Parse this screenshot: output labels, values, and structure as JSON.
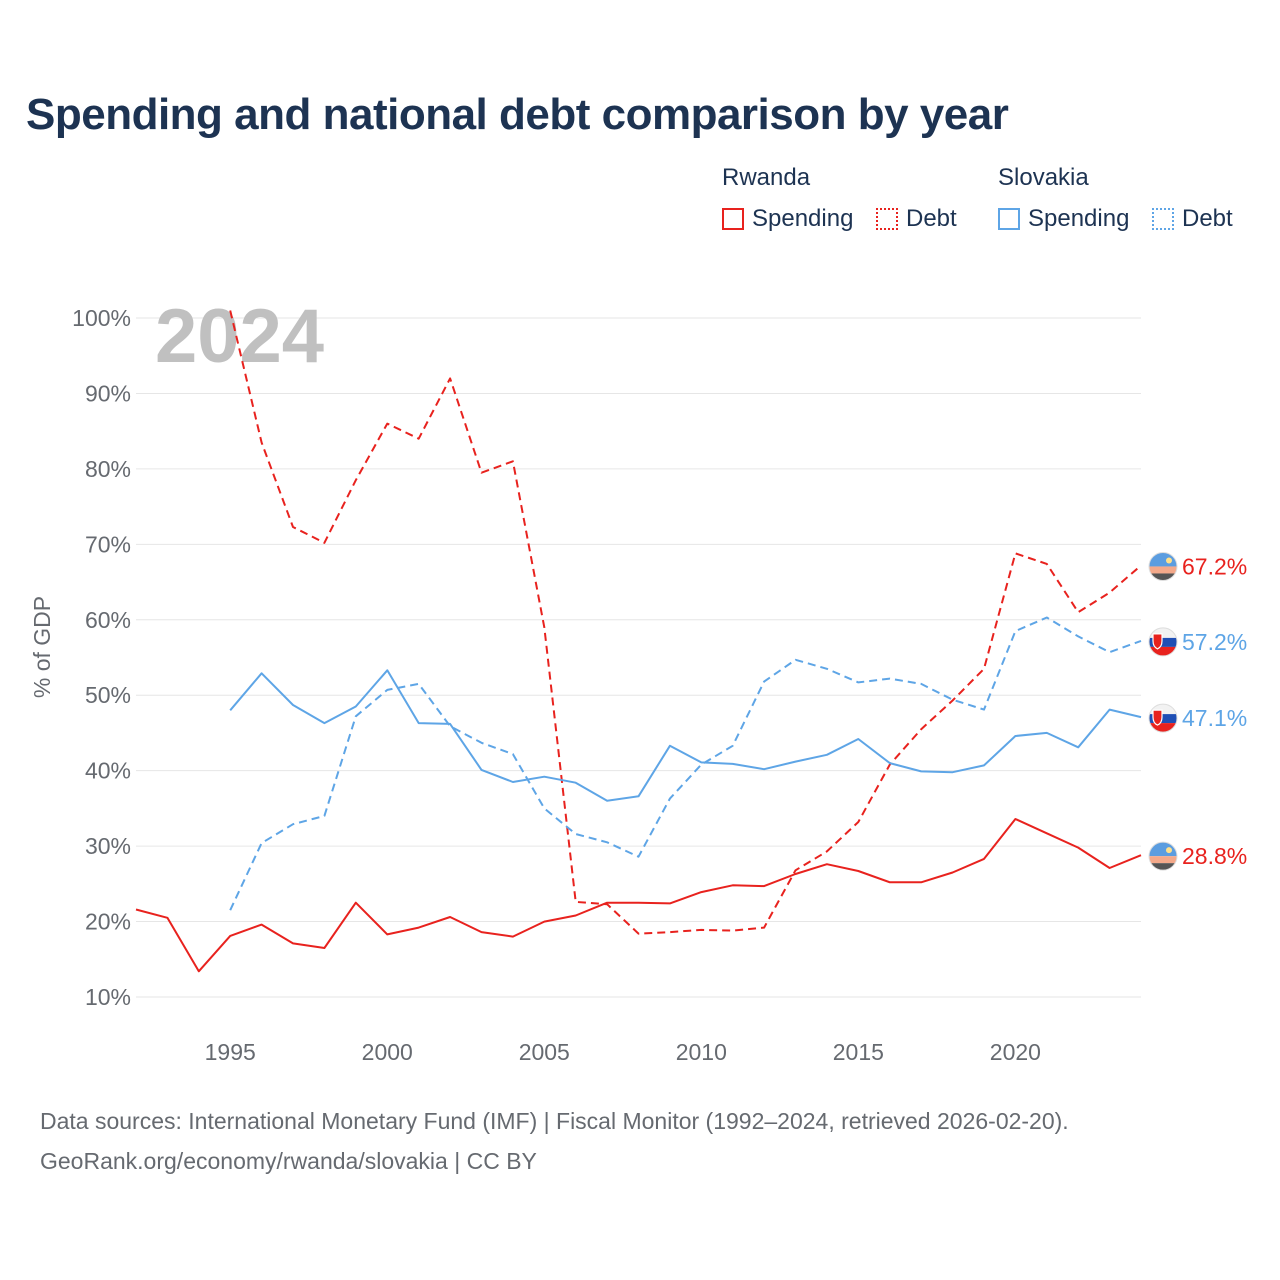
{
  "title": "Spending and national debt comparison by year",
  "legend": {
    "groups": [
      {
        "country": "Rwanda",
        "items": [
          {
            "label": "Spending",
            "style": "solid"
          },
          {
            "label": "Debt",
            "style": "dotted"
          }
        ],
        "color": "#e8221e"
      },
      {
        "country": "Slovakia",
        "items": [
          {
            "label": "Spending",
            "style": "solid"
          },
          {
            "label": "Debt",
            "style": "dotted"
          }
        ],
        "color": "#5ea5e6"
      }
    ]
  },
  "year_watermark": "2024",
  "footer": {
    "line1": "Data sources: International Monetary Fund (IMF) | Fiscal Monitor (1992–2024, retrieved 2026-02-20).",
    "line2": "GeoRank.org/economy/rwanda/slovakia | CC BY"
  },
  "colors": {
    "rwanda": "#e8221e",
    "slovakia": "#5ea5e6",
    "title": "#1d3352",
    "axis_text": "#666a70",
    "grid": "#e6e6e6",
    "watermark": "#c0c0c0"
  },
  "chart_data": {
    "type": "line",
    "title": "Spending and national debt comparison by year",
    "xlabel": "",
    "ylabel": "% of GDP",
    "xlim": [
      1992,
      2024
    ],
    "ylim": [
      10,
      100
    ],
    "xticks": [
      1995,
      2000,
      2005,
      2010,
      2015,
      2020
    ],
    "yticks": [
      10,
      20,
      30,
      40,
      50,
      60,
      70,
      80,
      90,
      100
    ],
    "ytick_labels": [
      "10%",
      "20%",
      "30%",
      "40%",
      "50%",
      "60%",
      "70%",
      "80%",
      "90%",
      "100%"
    ],
    "series": [
      {
        "name": "Rwanda Debt",
        "country": "Rwanda",
        "metric": "Debt",
        "dashed": true,
        "color": "#e8221e",
        "end_label": "67.2%",
        "flag": "rwanda",
        "points": [
          [
            1995,
            101
          ],
          [
            1996,
            83.5
          ],
          [
            1997,
            72.3
          ],
          [
            1998,
            70.2
          ],
          [
            1999,
            78.5
          ],
          [
            2000,
            86
          ],
          [
            2001,
            84
          ],
          [
            2002,
            92
          ],
          [
            2003,
            79.5
          ],
          [
            2004,
            81
          ],
          [
            2005,
            59
          ],
          [
            2006,
            22.6
          ],
          [
            2007,
            22.3
          ],
          [
            2008,
            18.4
          ],
          [
            2009,
            18.6
          ],
          [
            2010,
            18.9
          ],
          [
            2011,
            18.8
          ],
          [
            2012,
            19.2
          ],
          [
            2013,
            26.8
          ],
          [
            2014,
            29.3
          ],
          [
            2015,
            33.2
          ],
          [
            2016,
            40.8
          ],
          [
            2017,
            45.5
          ],
          [
            2018,
            49.3
          ],
          [
            2019,
            53.5
          ],
          [
            2020,
            68.8
          ],
          [
            2021,
            67.4
          ],
          [
            2022,
            61
          ],
          [
            2023,
            63.6
          ],
          [
            2024,
            67.2
          ]
        ]
      },
      {
        "name": "Rwanda Spending",
        "country": "Rwanda",
        "metric": "Spending",
        "dashed": false,
        "color": "#e8221e",
        "end_label": "28.8%",
        "flag": "rwanda",
        "points": [
          [
            1992,
            21.6
          ],
          [
            1993,
            20.5
          ],
          [
            1994,
            13.4
          ],
          [
            1995,
            18.1
          ],
          [
            1996,
            19.6
          ],
          [
            1997,
            17.1
          ],
          [
            1998,
            16.5
          ],
          [
            1999,
            22.5
          ],
          [
            2000,
            18.3
          ],
          [
            2001,
            19.2
          ],
          [
            2002,
            20.6
          ],
          [
            2003,
            18.6
          ],
          [
            2004,
            18
          ],
          [
            2005,
            20
          ],
          [
            2006,
            20.8
          ],
          [
            2007,
            22.5
          ],
          [
            2008,
            22.5
          ],
          [
            2009,
            22.4
          ],
          [
            2010,
            23.9
          ],
          [
            2011,
            24.8
          ],
          [
            2012,
            24.7
          ],
          [
            2013,
            26.3
          ],
          [
            2014,
            27.6
          ],
          [
            2015,
            26.7
          ],
          [
            2016,
            25.2
          ],
          [
            2017,
            25.2
          ],
          [
            2018,
            26.5
          ],
          [
            2019,
            28.3
          ],
          [
            2020,
            33.6
          ],
          [
            2021,
            31.7
          ],
          [
            2022,
            29.8
          ],
          [
            2023,
            27.1
          ],
          [
            2024,
            28.8
          ]
        ]
      },
      {
        "name": "Slovakia Debt",
        "country": "Slovakia",
        "metric": "Debt",
        "dashed": true,
        "color": "#5ea5e6",
        "end_label": "57.2%",
        "flag": "slovakia",
        "points": [
          [
            1995,
            21.5
          ],
          [
            1996,
            30.4
          ],
          [
            1997,
            32.9
          ],
          [
            1998,
            34
          ],
          [
            1999,
            47.2
          ],
          [
            2000,
            50.7
          ],
          [
            2001,
            51.5
          ],
          [
            2002,
            45.9
          ],
          [
            2003,
            43.7
          ],
          [
            2004,
            42.2
          ],
          [
            2005,
            35
          ],
          [
            2006,
            31.6
          ],
          [
            2007,
            30.5
          ],
          [
            2008,
            28.6
          ],
          [
            2009,
            36.3
          ],
          [
            2010,
            40.8
          ],
          [
            2011,
            43.3
          ],
          [
            2012,
            51.8
          ],
          [
            2013,
            54.7
          ],
          [
            2014,
            53.5
          ],
          [
            2015,
            51.7
          ],
          [
            2016,
            52.2
          ],
          [
            2017,
            51.5
          ],
          [
            2018,
            49.4
          ],
          [
            2019,
            48.1
          ],
          [
            2020,
            58.5
          ],
          [
            2021,
            60.3
          ],
          [
            2022,
            57.8
          ],
          [
            2023,
            55.7
          ],
          [
            2024,
            57.2
          ]
        ]
      },
      {
        "name": "Slovakia Spending",
        "country": "Slovakia",
        "metric": "Spending",
        "dashed": false,
        "color": "#5ea5e6",
        "end_label": "47.1%",
        "flag": "slovakia",
        "points": [
          [
            1995,
            48
          ],
          [
            1996,
            52.9
          ],
          [
            1997,
            48.7
          ],
          [
            1998,
            46.3
          ],
          [
            1999,
            48.5
          ],
          [
            2000,
            53.3
          ],
          [
            2001,
            46.3
          ],
          [
            2002,
            46.2
          ],
          [
            2003,
            40.1
          ],
          [
            2004,
            38.5
          ],
          [
            2005,
            39.2
          ],
          [
            2006,
            38.4
          ],
          [
            2007,
            36
          ],
          [
            2008,
            36.6
          ],
          [
            2009,
            43.3
          ],
          [
            2010,
            41.1
          ],
          [
            2011,
            40.9
          ],
          [
            2012,
            40.2
          ],
          [
            2013,
            41.2
          ],
          [
            2014,
            42.1
          ],
          [
            2015,
            44.2
          ],
          [
            2016,
            41
          ],
          [
            2017,
            39.9
          ],
          [
            2018,
            39.8
          ],
          [
            2019,
            40.7
          ],
          [
            2020,
            44.6
          ],
          [
            2021,
            45
          ],
          [
            2022,
            43.1
          ],
          [
            2023,
            48.1
          ],
          [
            2024,
            47.1
          ]
        ]
      }
    ]
  }
}
